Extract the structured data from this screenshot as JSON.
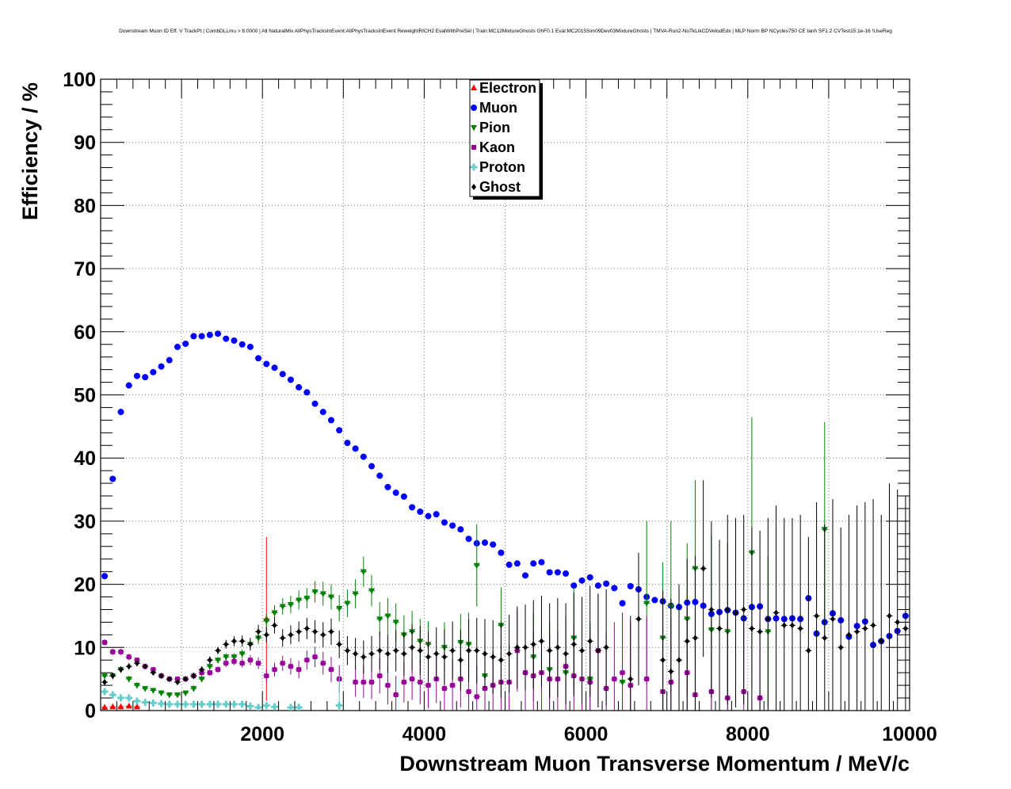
{
  "chart_data": {
    "type": "scatter",
    "title": "Downstream Muon ID Eff. V TrackPt | CombDLLmu > 8.0000 | All NaturalMix AllPhysTracksInEvent:AllPhysTracksInEvent ReweightRICH2 EvalWithPreSel | Train:MC12MixtureGhosts GhF0.1 Eval:MC2015Sim09Dev03MixtureGhosts | TMVA-Run2-NoTkLikCDVelodEdx | MLP Norm BP NCycles750 CE tanh SF1.2 CVTest15:1e-16 !UseReg",
    "xlabel": "Downstream Muon Transverse Momentum / MeV/c",
    "ylabel": "Efficiency / %",
    "xlim": [
      0,
      10000
    ],
    "ylim": [
      0,
      100
    ],
    "x_ticks": [
      "2000",
      "4000",
      "6000",
      "8000",
      "10000"
    ],
    "y_ticks": [
      "0",
      "10",
      "20",
      "30",
      "40",
      "50",
      "60",
      "70",
      "80",
      "90",
      "100"
    ],
    "grid": true,
    "legend_position": "top-center",
    "series": [
      {
        "name": "Electron",
        "color": "#ff0000",
        "marker": "triangle-up",
        "x": [
          50,
          150,
          250,
          350,
          450,
          2050
        ],
        "y": [
          0.5,
          0.6,
          0.6,
          0.7,
          0.6,
          14.5
        ],
        "err": [
          0.3,
          0.3,
          0.3,
          0.3,
          0.3,
          13
        ]
      },
      {
        "name": "Muon",
        "color": "#0000ff",
        "marker": "circle",
        "x": [
          50,
          150,
          250,
          350,
          450,
          550,
          650,
          750,
          850,
          950,
          1050,
          1150,
          1250,
          1350,
          1450,
          1550,
          1650,
          1750,
          1850,
          1950,
          2050,
          2150,
          2250,
          2350,
          2450,
          2550,
          2650,
          2750,
          2850,
          2950,
          3050,
          3150,
          3250,
          3350,
          3450,
          3550,
          3650,
          3750,
          3850,
          3950,
          4050,
          4150,
          4250,
          4350,
          4450,
          4550,
          4650,
          4750,
          4850,
          4950,
          5050,
          5150,
          5250,
          5350,
          5450,
          5550,
          5650,
          5750,
          5850,
          5950,
          6050,
          6150,
          6250,
          6350,
          6450,
          6550,
          6650,
          6750,
          6850,
          6950,
          7050,
          7150,
          7250,
          7350,
          7450,
          7550,
          7650,
          7750,
          7850,
          7950,
          8050,
          8150,
          8250,
          8350,
          8450,
          8550,
          8650,
          8750,
          8850,
          8950,
          9050,
          9150,
          9250,
          9350,
          9450,
          9550,
          9650,
          9750,
          9850,
          9950
        ],
        "y": [
          21.3,
          36.7,
          47.3,
          51.5,
          53,
          52.8,
          53.6,
          54.5,
          55.5,
          57.6,
          58.1,
          59.3,
          59.3,
          59.5,
          59.7,
          58.9,
          58.6,
          58,
          57.6,
          55.8,
          54.9,
          54.3,
          53.3,
          52.4,
          51.2,
          50.4,
          48.6,
          47.3,
          46,
          44.4,
          42.4,
          41.5,
          40.2,
          38.7,
          37.2,
          35.4,
          34.5,
          33.9,
          32.2,
          31.5,
          30.8,
          31.1,
          29.8,
          29.3,
          28.7,
          27.2,
          26.5,
          26.6,
          26.3,
          25,
          23.1,
          23.3,
          21.4,
          23.3,
          23.5,
          21.9,
          21.9,
          21.7,
          19.8,
          20.6,
          21.1,
          19.8,
          20.1,
          19.4,
          17,
          19.7,
          19.2,
          18,
          17.5,
          17.3,
          16.6,
          16.4,
          17.1,
          17.2,
          16.6,
          15.3,
          15.6,
          15.9,
          15.5,
          14.6,
          16.4,
          16.5,
          14.5,
          14.6,
          14.5,
          14.6,
          14.5,
          17.8,
          12.2,
          14,
          15.4,
          14.3,
          11.7,
          13.4,
          14.1,
          10.4,
          11,
          11.8,
          12.6,
          15
        ]
      },
      {
        "name": "Pion",
        "color": "#008000",
        "marker": "triangle-down",
        "x": [
          50,
          150,
          250,
          350,
          450,
          550,
          650,
          750,
          850,
          950,
          1050,
          1150,
          1250,
          1350,
          1450,
          1550,
          1650,
          1750,
          1850,
          1950,
          2050,
          2150,
          2250,
          2350,
          2450,
          2550,
          2650,
          2750,
          2850,
          2950,
          3050,
          3150,
          3250,
          3350,
          3450,
          3550,
          3650,
          3750,
          3850,
          3950,
          4050,
          4250,
          4450,
          4550,
          4650,
          4750,
          4950,
          5350,
          5550,
          5750,
          5850,
          6050,
          6450,
          6750,
          6950,
          7050,
          7250,
          7350,
          7550,
          7750,
          8050,
          8250,
          8950
        ],
        "y": [
          5.5,
          5.5,
          6.5,
          5,
          4,
          3.5,
          3.2,
          2.8,
          2.5,
          2.5,
          2.8,
          3.5,
          5,
          7,
          8,
          8.5,
          8.5,
          9,
          10.5,
          11.5,
          14.2,
          15.5,
          16.5,
          16.8,
          17.5,
          17.8,
          18.8,
          18.5,
          18,
          16.2,
          17,
          18.5,
          22,
          19,
          14.5,
          15,
          14,
          12,
          12.5,
          11,
          10.5,
          10,
          10.8,
          10.5,
          23,
          5.5,
          13.5,
          8.5,
          6.5,
          6,
          11.5,
          5,
          4.5,
          17,
          11.5,
          16.5,
          14.5,
          22.5,
          12.8,
          12.5,
          25,
          12.5,
          28.7
        ],
        "err": [
          0.5,
          0.5,
          0.5,
          0.5,
          0.5,
          0.4,
          0.4,
          0.4,
          0.4,
          0.4,
          0.4,
          0.5,
          0.5,
          0.5,
          0.5,
          0.6,
          0.6,
          0.7,
          0.8,
          1,
          1.2,
          1.2,
          1.3,
          1.4,
          1.5,
          1.6,
          1.7,
          1.9,
          2,
          2.1,
          2.2,
          2.3,
          2.4,
          2.5,
          2.7,
          2.8,
          3,
          3.1,
          3.3,
          3.5,
          3.6,
          4,
          4.5,
          5,
          6.5,
          6,
          6,
          7,
          7.5,
          9,
          8,
          9,
          11,
          13,
          12,
          13.5,
          12,
          14,
          15,
          14,
          21.5,
          12,
          17
        ]
      },
      {
        "name": "Kaon",
        "color": "#990099",
        "marker": "square",
        "x": [
          50,
          150,
          250,
          350,
          450,
          550,
          650,
          750,
          850,
          950,
          1050,
          1150,
          1250,
          1350,
          1450,
          1550,
          1650,
          1750,
          1850,
          1950,
          2050,
          2150,
          2250,
          2350,
          2450,
          2550,
          2650,
          2750,
          2850,
          2950,
          3150,
          3250,
          3350,
          3450,
          3550,
          3650,
          3750,
          3850,
          3950,
          4050,
          4150,
          4250,
          4350,
          4450,
          4550,
          4650,
          4750,
          4850,
          4950,
          5050,
          5150,
          5250,
          5350,
          5450,
          5550,
          5650,
          5750,
          5850,
          5950,
          6050,
          6150,
          6250,
          6350,
          6450,
          6550,
          6750,
          6950,
          7050,
          7250,
          7350,
          7550,
          7750,
          7950,
          8150
        ],
        "y": [
          10.8,
          9.3,
          9.3,
          8.5,
          8,
          7,
          6.5,
          5.5,
          5,
          5,
          5,
          5.5,
          6,
          6,
          6.5,
          7.5,
          7.8,
          7.5,
          8,
          7.5,
          5.5,
          6.5,
          7.5,
          7,
          6.5,
          8,
          8.5,
          7.5,
          6.5,
          5,
          4.5,
          4.5,
          4.5,
          5.5,
          4,
          2.5,
          4.5,
          5,
          4.5,
          4,
          5,
          3.5,
          4,
          5,
          3,
          2.2,
          3.5,
          4,
          4.5,
          4.5,
          9.5,
          6,
          5.5,
          6,
          5,
          5,
          7,
          5.5,
          5,
          4.5,
          9.5,
          3.5,
          5,
          6,
          4,
          5,
          3,
          4.5,
          6,
          2.5,
          3,
          2,
          3,
          2
        ],
        "err": [
          0.5,
          0.5,
          0.5,
          0.5,
          0.4,
          0.4,
          0.4,
          0.4,
          0.4,
          0.4,
          0.4,
          0.4,
          0.5,
          0.5,
          0.5,
          0.6,
          0.6,
          0.7,
          0.8,
          0.9,
          1,
          1.1,
          1.2,
          1.3,
          1.4,
          1.5,
          1.6,
          1.8,
          2,
          2.2,
          2.3,
          2.5,
          2.7,
          2.8,
          3,
          3,
          3.2,
          3.3,
          3.5,
          3.6,
          3.8,
          4,
          4.2,
          4.5,
          4.8,
          5,
          5.2,
          5.5,
          5.8,
          6,
          6.5,
          6.5,
          7,
          7,
          7,
          7.5,
          8,
          8,
          8,
          8.5,
          9,
          9,
          9,
          9.5,
          10,
          10,
          10,
          10,
          11,
          11,
          11,
          12,
          12,
          12
        ]
      },
      {
        "name": "Proton",
        "color": "#66cccc",
        "marker": "cross",
        "x": [
          50,
          150,
          250,
          350,
          450,
          550,
          650,
          750,
          850,
          950,
          1050,
          1150,
          1250,
          1350,
          1450,
          1550,
          1650,
          1750,
          1850,
          1950,
          2050,
          2150,
          2350,
          2450,
          2950
        ],
        "y": [
          3,
          2.5,
          2,
          2,
          1.5,
          1.3,
          1.2,
          1.1,
          1,
          1,
          1,
          1,
          1,
          1,
          1,
          1,
          1,
          1,
          0.7,
          0.5,
          0.8,
          0.6,
          0.5,
          0.5,
          0.8
        ],
        "err": [
          0.5,
          0.4,
          0.4,
          0.3,
          0.3,
          0.3,
          0.3,
          0.3,
          0.3,
          0.3,
          0.3,
          0.3,
          0.3,
          0.3,
          0.3,
          0.3,
          0.3,
          0.3,
          0.3,
          0.3,
          0.4,
          0.4,
          0.5,
          0.6,
          4.5
        ]
      },
      {
        "name": "Ghost",
        "color": "#000000",
        "marker": "diamond",
        "x": [
          50,
          150,
          250,
          350,
          450,
          550,
          650,
          750,
          850,
          950,
          1050,
          1150,
          1250,
          1350,
          1450,
          1550,
          1650,
          1750,
          1850,
          1950,
          2050,
          2150,
          2250,
          2350,
          2450,
          2550,
          2650,
          2750,
          2850,
          2950,
          3050,
          3150,
          3250,
          3350,
          3450,
          3550,
          3650,
          3750,
          3850,
          3950,
          4050,
          4150,
          4250,
          4350,
          4450,
          4550,
          4650,
          4750,
          4850,
          4950,
          5050,
          5150,
          5250,
          5350,
          5450,
          5550,
          5650,
          5750,
          5850,
          5950,
          6050,
          6150,
          6250,
          6550,
          6650,
          6950,
          7050,
          7150,
          7250,
          7350,
          7450,
          7550,
          7650,
          7750,
          7850,
          7950,
          8050,
          8150,
          8250,
          8350,
          8450,
          8550,
          8650,
          8750,
          8850,
          8950,
          9050,
          9150,
          9250,
          9350,
          9450,
          9550,
          9650,
          9750,
          9850,
          9950
        ],
        "y": [
          4.5,
          5.5,
          6.5,
          7,
          7.5,
          7,
          6,
          5.5,
          5,
          4.5,
          5,
          5.5,
          6.5,
          8,
          9.5,
          10.5,
          11,
          11,
          10.5,
          12.5,
          12,
          13.5,
          11.5,
          12,
          12.5,
          13,
          12.5,
          12,
          12.5,
          10.5,
          9.5,
          9,
          8.5,
          9,
          9.5,
          9,
          9.5,
          9,
          10,
          9.5,
          8.5,
          9,
          8.5,
          9.5,
          8,
          9.5,
          9.5,
          9,
          8.5,
          8,
          9,
          10,
          10,
          10.5,
          11,
          9.5,
          10,
          9,
          10.5,
          9.5,
          11,
          9.5,
          10,
          5,
          14.5,
          8,
          6.2,
          8,
          11,
          11.5,
          22.5,
          16,
          13,
          16,
          15.5,
          16,
          13,
          12.5,
          14.5,
          15.5,
          13.5,
          13.5,
          13,
          9.5,
          15,
          11.5,
          14.5,
          10,
          12,
          12.5,
          13,
          13.5,
          11,
          15,
          14,
          13
        ],
        "err": [
          0.4,
          0.4,
          0.5,
          0.5,
          0.5,
          0.4,
          0.4,
          0.4,
          0.4,
          0.4,
          0.4,
          0.5,
          0.5,
          0.6,
          0.6,
          0.7,
          0.8,
          0.9,
          1,
          1.1,
          1.2,
          1.3,
          1.4,
          1.5,
          1.6,
          1.7,
          1.8,
          2,
          2.1,
          2.2,
          2.3,
          2.5,
          2.6,
          2.8,
          3,
          3.1,
          3.3,
          3.5,
          3.7,
          3.9,
          4,
          4.2,
          4.4,
          4.6,
          4.8,
          5,
          5.2,
          5.5,
          5.8,
          6,
          6.2,
          6.5,
          6.8,
          7,
          7.2,
          7.5,
          7.8,
          8,
          8.2,
          8.5,
          8.8,
          9,
          9.2,
          10,
          10.5,
          11,
          11.5,
          12,
          13,
          13,
          14,
          14,
          14,
          15,
          15,
          15,
          16,
          16,
          16,
          17,
          17,
          17,
          18,
          18,
          18,
          18,
          19,
          19,
          19,
          20,
          20,
          20,
          20,
          21,
          21,
          21
        ]
      }
    ]
  }
}
